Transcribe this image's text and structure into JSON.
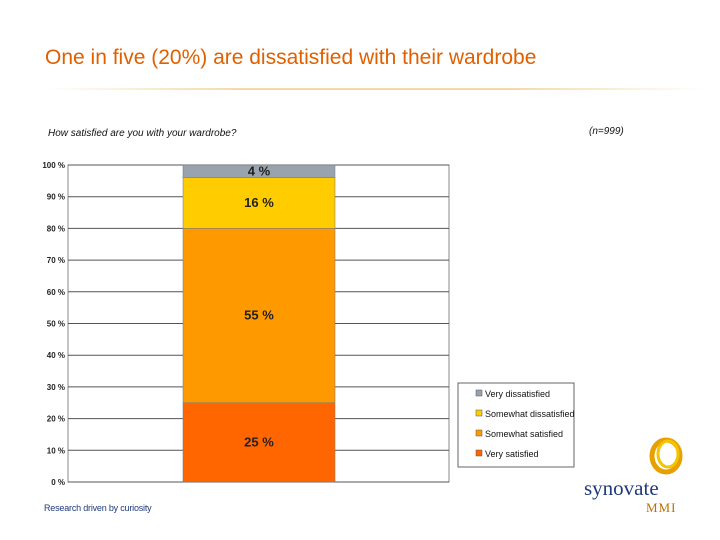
{
  "slide": {
    "title": "One in five (20%) are dissatisfied with their wardrobe",
    "question": "How satisfied are you with your wardrobe?",
    "sample": "(n=999)",
    "footer": "Research driven by curiosity",
    "logo_text": "synovate",
    "logo_sub": "MMI"
  },
  "chart_data": {
    "type": "bar",
    "stacked": true,
    "categories": [
      ""
    ],
    "ylim": [
      0,
      100
    ],
    "yticks": [
      0,
      10,
      20,
      30,
      40,
      50,
      60,
      70,
      80,
      90,
      100
    ],
    "ytick_labels": [
      "0 %",
      "10 %",
      "20 %",
      "30 %",
      "40 %",
      "50 %",
      "60 %",
      "70 %",
      "80 %",
      "90 %",
      "100 %"
    ],
    "grid": true,
    "legend_position": "bottom-right",
    "series": [
      {
        "name": "Very satisfied",
        "values": [
          25
        ],
        "label": "25 %",
        "color": "#ff6600"
      },
      {
        "name": "Somewhat satisfied",
        "values": [
          55
        ],
        "label": "55 %",
        "color": "#ff9900"
      },
      {
        "name": "Somewhat dissatisfied",
        "values": [
          16
        ],
        "label": "16 %",
        "color": "#ffcc00"
      },
      {
        "name": "Very dissatisfied",
        "values": [
          4
        ],
        "label": "4 %",
        "color": "#99a3ad"
      }
    ],
    "legend_order": [
      "Very dissatisfied",
      "Somewhat dissatisfied",
      "Somewhat satisfied",
      "Very satisfied"
    ]
  }
}
